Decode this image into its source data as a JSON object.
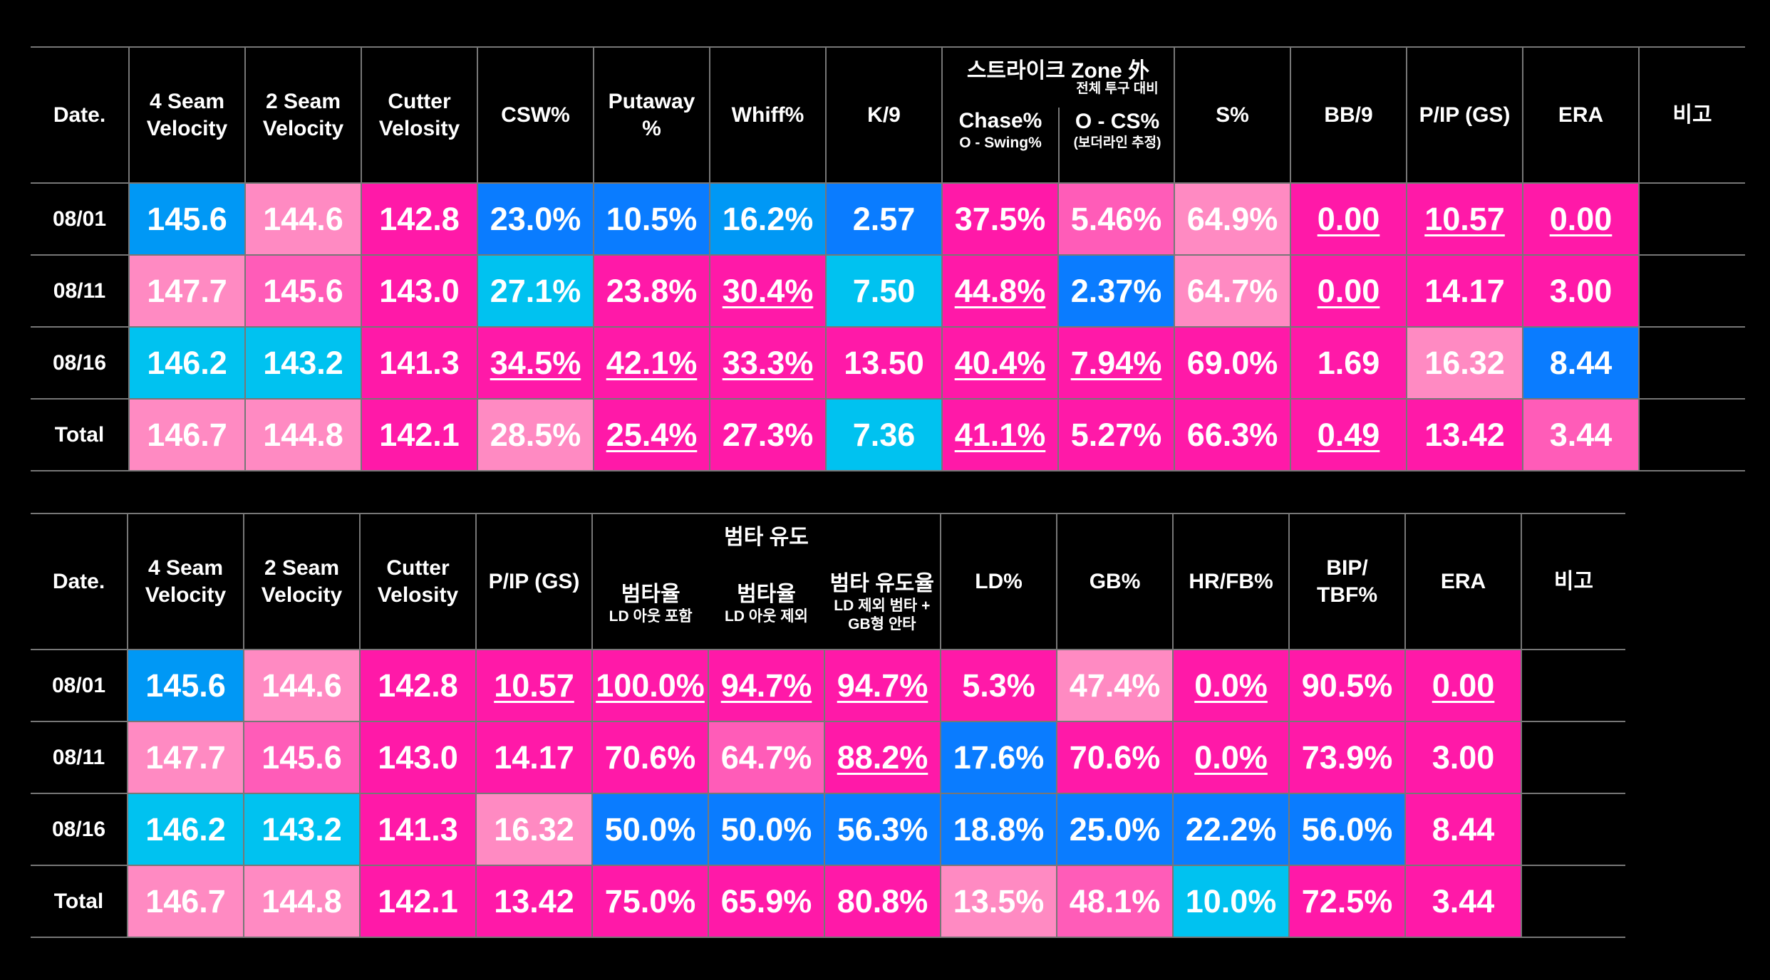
{
  "table1": {
    "headers": {
      "date": "Date.",
      "seam4": [
        "4 Seam",
        "Velocity"
      ],
      "seam2": [
        "2 Seam",
        "Velocity"
      ],
      "cutter": [
        "Cutter",
        "Velosity"
      ],
      "csw": "CSW%",
      "putaway": [
        "Putaway",
        "%"
      ],
      "whiff": "Whiff%",
      "k9": "K/9",
      "zone_group": "스트라이크 Zone 外",
      "chase": "Chase%",
      "chase_sub": "O - Swing%",
      "ocs_top": "전체 투구 대비",
      "ocs": "O - CS%",
      "ocs_sub": "(보더라인 추정)",
      "s": "S%",
      "bb9": "BB/9",
      "pip": "P/IP (GS)",
      "era": "ERA",
      "note": "비고"
    },
    "rows": [
      {
        "date": "08/01",
        "cells": [
          "145.6",
          "144.6",
          "142.8",
          "23.0%",
          "10.5%",
          "16.2%",
          "2.57",
          "37.5%",
          "5.46%",
          "64.9%",
          "0.00",
          "10.57",
          "0.00",
          ""
        ]
      },
      {
        "date": "08/11",
        "cells": [
          "147.7",
          "145.6",
          "143.0",
          "27.1%",
          "23.8%",
          "30.4%",
          "7.50",
          "44.8%",
          "2.37%",
          "64.7%",
          "0.00",
          "14.17",
          "3.00",
          ""
        ]
      },
      {
        "date": "08/16",
        "cells": [
          "146.2",
          "143.2",
          "141.3",
          "34.5%",
          "42.1%",
          "33.3%",
          "13.50",
          "40.4%",
          "7.94%",
          "69.0%",
          "1.69",
          "16.32",
          "8.44",
          ""
        ]
      },
      {
        "date": "Total",
        "cells": [
          "146.7",
          "144.8",
          "142.1",
          "28.5%",
          "25.4%",
          "27.3%",
          "7.36",
          "41.1%",
          "5.27%",
          "66.3%",
          "0.49",
          "13.42",
          "3.44",
          ""
        ]
      }
    ]
  },
  "table2": {
    "headers": {
      "date": "Date.",
      "seam4": [
        "4 Seam",
        "Velocity"
      ],
      "seam2": [
        "2 Seam",
        "Velocity"
      ],
      "cutter": [
        "Cutter",
        "Velosity"
      ],
      "pip": "P/IP (GS)",
      "group": "범타 유도",
      "ba1": "범타율",
      "ba1_sub": "LD 아웃 포함",
      "ba2": "범타율",
      "ba2_sub": "LD 아웃 제외",
      "ba3": "범타 유도율",
      "ba3_sub": [
        "LD 제외 범타 +",
        "GB형 안타"
      ],
      "ld": "LD%",
      "gb": "GB%",
      "hrfb": "HR/FB%",
      "bip": [
        "BIP/",
        "TBF%"
      ],
      "era": "ERA",
      "note": "비고"
    },
    "rows": [
      {
        "date": "08/01",
        "cells": [
          "145.6",
          "144.6",
          "142.8",
          "10.57",
          "100.0%",
          "94.7%",
          "94.7%",
          "5.3%",
          "47.4%",
          "0.0%",
          "90.5%",
          "0.00",
          ""
        ]
      },
      {
        "date": "08/11",
        "cells": [
          "147.7",
          "145.6",
          "143.0",
          "14.17",
          "70.6%",
          "64.7%",
          "88.2%",
          "17.6%",
          "70.6%",
          "0.0%",
          "73.9%",
          "3.00",
          ""
        ]
      },
      {
        "date": "08/16",
        "cells": [
          "146.2",
          "143.2",
          "141.3",
          "16.32",
          "50.0%",
          "50.0%",
          "56.3%",
          "18.8%",
          "25.0%",
          "22.2%",
          "56.0%",
          "8.44",
          ""
        ]
      },
      {
        "date": "Total",
        "cells": [
          "146.7",
          "144.8",
          "142.1",
          "13.42",
          "75.0%",
          "65.9%",
          "80.8%",
          "13.5%",
          "48.1%",
          "10.0%",
          "72.5%",
          "3.44",
          ""
        ]
      }
    ]
  },
  "colors": {
    "hot_pink": "#ff19a8",
    "light_pink": "#ff8ac2",
    "mid_pink": "#ff5cb8",
    "blue": "#0a7cff",
    "cyan": "#00c2f0",
    "mid_blue": "#0098f5",
    "background": "#000000",
    "grid": "#777777"
  }
}
